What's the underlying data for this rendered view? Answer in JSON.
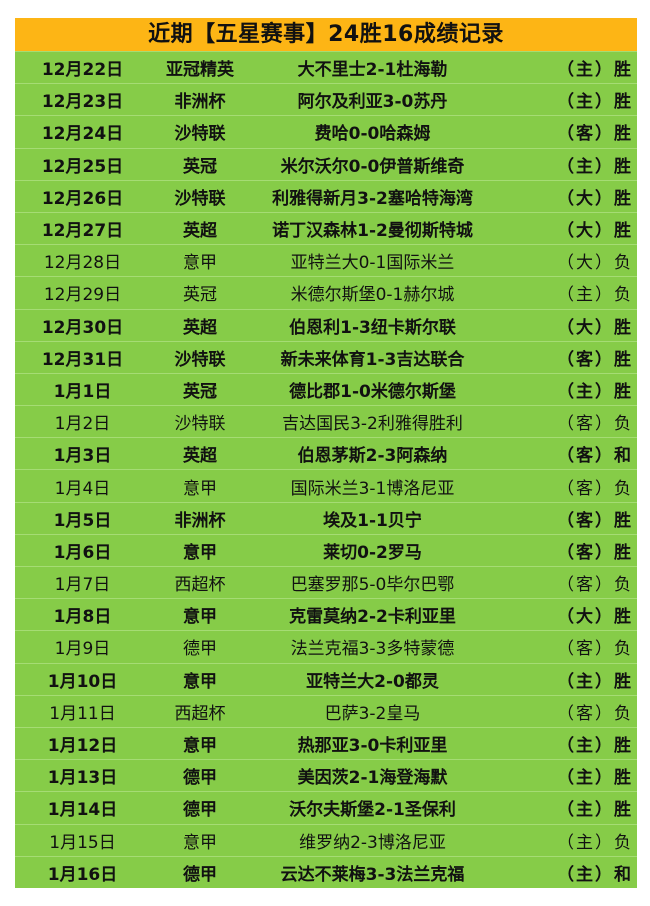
{
  "title": "近期【五星赛事】24胜16成绩记录",
  "colors": {
    "title_bg": "#fdb515",
    "table_bg": "#86cc48"
  },
  "rows": [
    {
      "date": "12月22日",
      "league": "亚冠精英",
      "match": "大不里士2-1杜海勒",
      "venue": "（主）",
      "result": "胜"
    },
    {
      "date": "12月23日",
      "league": "非洲杯",
      "match": "阿尔及利亚3-0苏丹",
      "venue": "（主）",
      "result": "胜"
    },
    {
      "date": "12月24日",
      "league": "沙特联",
      "match": "费哈0-0哈森姆",
      "venue": "（客）",
      "result": "胜"
    },
    {
      "date": "12月25日",
      "league": "英冠",
      "match": "米尔沃尔0-0伊普斯维奇",
      "venue": "（主）",
      "result": "胜"
    },
    {
      "date": "12月26日",
      "league": "沙特联",
      "match": "利雅得新月3-2塞哈特海湾",
      "venue": "（大）",
      "result": "胜"
    },
    {
      "date": "12月27日",
      "league": "英超",
      "match": "诺丁汉森林1-2曼彻斯特城",
      "venue": "（大）",
      "result": "胜"
    },
    {
      "date": "12月28日",
      "league": "意甲",
      "match": "亚特兰大0-1国际米兰",
      "venue": "（大）",
      "result": "负"
    },
    {
      "date": "12月29日",
      "league": "英冠",
      "match": "米德尔斯堡0-1赫尔城",
      "venue": "（主）",
      "result": "负"
    },
    {
      "date": "12月30日",
      "league": "英超",
      "match": "伯恩利1-3纽卡斯尔联",
      "venue": "（大）",
      "result": "胜"
    },
    {
      "date": "12月31日",
      "league": "沙特联",
      "match": "新未来体育1-3吉达联合",
      "venue": "（客）",
      "result": "胜"
    },
    {
      "date": "1月1日",
      "league": "英冠",
      "match": "德比郡1-0米德尔斯堡",
      "venue": "（主）",
      "result": "胜"
    },
    {
      "date": "1月2日",
      "league": "沙特联",
      "match": "吉达国民3-2利雅得胜利",
      "venue": "（客）",
      "result": "负"
    },
    {
      "date": "1月3日",
      "league": "英超",
      "match": "伯恩茅斯2-3阿森纳",
      "venue": "（客）",
      "result": "和"
    },
    {
      "date": "1月4日",
      "league": "意甲",
      "match": "国际米兰3-1博洛尼亚",
      "venue": "（客）",
      "result": "负"
    },
    {
      "date": "1月5日",
      "league": "非洲杯",
      "match": "埃及1-1贝宁",
      "venue": "（客）",
      "result": "胜"
    },
    {
      "date": "1月6日",
      "league": "意甲",
      "match": "莱切0-2罗马",
      "venue": "（客）",
      "result": "胜"
    },
    {
      "date": "1月7日",
      "league": "西超杯",
      "match": "巴塞罗那5-0毕尔巴鄂",
      "venue": "（客）",
      "result": "负"
    },
    {
      "date": "1月8日",
      "league": "意甲",
      "match": "克雷莫纳2-2卡利亚里",
      "venue": "（大）",
      "result": "胜"
    },
    {
      "date": "1月9日",
      "league": "德甲",
      "match": "法兰克福3-3多特蒙德",
      "venue": "（客）",
      "result": "负"
    },
    {
      "date": "1月10日",
      "league": "意甲",
      "match": "亚特兰大2-0都灵",
      "venue": "（主）",
      "result": "胜"
    },
    {
      "date": "1月11日",
      "league": "西超杯",
      "match": "巴萨3-2皇马",
      "venue": "（客）",
      "result": "负"
    },
    {
      "date": "1月12日",
      "league": "意甲",
      "match": "热那亚3-0卡利亚里",
      "venue": "（主）",
      "result": "胜"
    },
    {
      "date": "1月13日",
      "league": "德甲",
      "match": "美因茨2-1海登海默",
      "venue": "（主）",
      "result": "胜"
    },
    {
      "date": "1月14日",
      "league": "德甲",
      "match": "沃尔夫斯堡2-1圣保利",
      "venue": "（主）",
      "result": "胜"
    },
    {
      "date": "1月15日",
      "league": "意甲",
      "match": "维罗纳2-3博洛尼亚",
      "venue": "（主）",
      "result": "负"
    },
    {
      "date": "1月16日",
      "league": "德甲",
      "match": "云达不莱梅3-3法兰克福",
      "venue": "（主）",
      "result": "和"
    }
  ]
}
